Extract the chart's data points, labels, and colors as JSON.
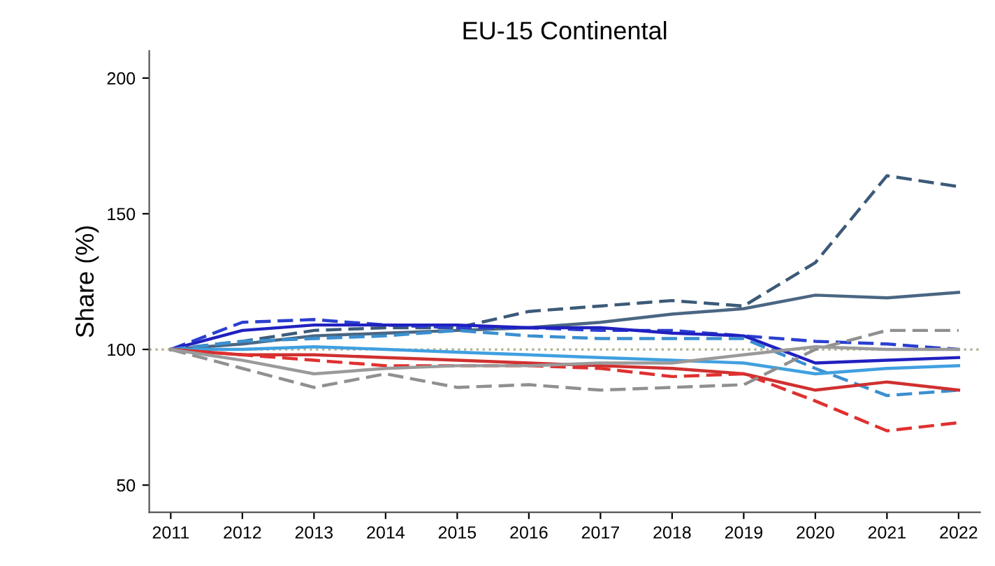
{
  "chart_data": {
    "type": "line",
    "title": "EU-15 Continental",
    "ylabel": "Share (%)",
    "x": [
      2011,
      2012,
      2013,
      2014,
      2015,
      2016,
      2017,
      2018,
      2019,
      2020,
      2021,
      2022
    ],
    "xlim": [
      2010.7,
      2022.3
    ],
    "xticks": [
      2011,
      2012,
      2013,
      2014,
      2015,
      2016,
      2017,
      2018,
      2019,
      2020,
      2021,
      2022
    ],
    "ylim": [
      40,
      210
    ],
    "yticks": [
      50,
      100,
      150,
      200
    ],
    "grid": false,
    "marker": "none",
    "ref_lines": [
      {
        "axis": "y",
        "value": 100,
        "color": "#b0b090",
        "line_style": "dotted"
      }
    ],
    "series": [
      {
        "color": "#3c5a78",
        "line_style": "dashed",
        "values": [
          100,
          103,
          107,
          108,
          108,
          114,
          116,
          118,
          116,
          132,
          164,
          160
        ]
      },
      {
        "color": "#4a6682",
        "line_style": "solid",
        "values": [
          100,
          102,
          105,
          106,
          107,
          108,
          110,
          113,
          115,
          120,
          119,
          121
        ]
      },
      {
        "color": "#2a3fd0",
        "line_style": "dashed",
        "values": [
          100,
          110,
          111,
          109,
          108,
          108,
          107,
          107,
          105,
          103,
          102,
          100
        ]
      },
      {
        "color": "#2020c0",
        "line_style": "solid",
        "values": [
          100,
          107,
          109,
          109,
          109,
          108,
          108,
          106,
          105,
          95,
          96,
          97
        ]
      },
      {
        "color": "#3a8fd0",
        "line_style": "dashed",
        "values": [
          100,
          103,
          104,
          105,
          107,
          105,
          104,
          104,
          104,
          93,
          83,
          85
        ]
      },
      {
        "color": "#40a0e0",
        "line_style": "solid",
        "values": [
          100,
          100,
          101,
          100,
          99,
          98,
          97,
          96,
          95,
          91,
          93,
          94
        ]
      },
      {
        "color": "#d03030",
        "line_style": "solid",
        "values": [
          100,
          98,
          98,
          97,
          96,
          95,
          94,
          93,
          91,
          85,
          88,
          85
        ]
      },
      {
        "color": "#e03030",
        "line_style": "dashed",
        "values": [
          100,
          98,
          96,
          94,
          94,
          94,
          93,
          90,
          91,
          81,
          70,
          73
        ]
      },
      {
        "color": "#909090",
        "line_style": "dashed",
        "values": [
          100,
          93,
          86,
          91,
          86,
          87,
          85,
          86,
          87,
          100,
          107,
          107
        ]
      },
      {
        "color": "#9a9a9a",
        "line_style": "solid",
        "values": [
          100,
          96,
          91,
          93,
          94,
          94,
          95,
          95,
          98,
          101,
          100,
          100
        ]
      }
    ]
  }
}
